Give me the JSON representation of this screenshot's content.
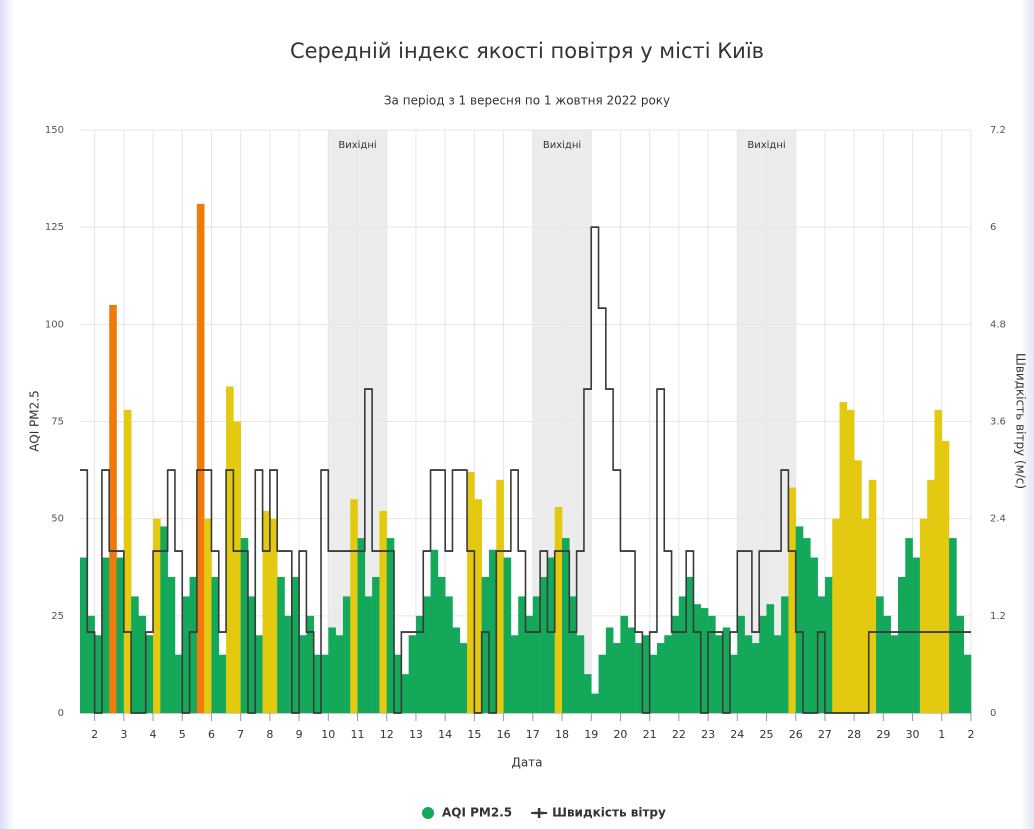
{
  "chart_data": {
    "type": "column-step",
    "title": "Середній індекс якості повітря у місті Київ",
    "subtitle": "За період з 1 вересня по 1 жовтня 2022 року",
    "x_label": "Дата",
    "y_label": "AQI PM2.5",
    "y2_label": "Швидкість вітру (м/с)",
    "xlim": [
      1.5,
      32
    ],
    "ylim": [
      0,
      150
    ],
    "y2lim": [
      0,
      7.2
    ],
    "xticks": [
      2,
      3,
      4,
      5,
      6,
      7,
      8,
      9,
      10,
      11,
      12,
      13,
      14,
      15,
      16,
      17,
      18,
      19,
      20,
      21,
      22,
      23,
      24,
      25,
      26,
      27,
      28,
      29,
      30,
      {
        "value": 31,
        "label": "1"
      },
      {
        "value": 32,
        "label": "2"
      }
    ],
    "yticks": [
      0,
      25,
      50,
      75,
      100,
      125,
      150
    ],
    "y2ticks": [
      0,
      1.2,
      2.4,
      3.6,
      4.8,
      6,
      7.2
    ],
    "grid": true,
    "legend": "bottom",
    "plot_bands": [
      {
        "from": 10,
        "to": 12,
        "label": "Вихідні"
      },
      {
        "from": 17,
        "to": 19,
        "label": "Вихідні"
      },
      {
        "from": 24,
        "to": 26,
        "label": "Вихідні"
      }
    ],
    "x": [
      1.5,
      1.75,
      2,
      2.25,
      2.5,
      2.75,
      3,
      3.25,
      3.5,
      3.75,
      4,
      4.25,
      4.5,
      4.75,
      5,
      5.25,
      5.5,
      5.75,
      6,
      6.25,
      6.5,
      6.75,
      7,
      7.25,
      7.5,
      7.75,
      8,
      8.25,
      8.5,
      8.75,
      9,
      9.25,
      9.5,
      9.75,
      10,
      10.25,
      10.5,
      10.75,
      11,
      11.25,
      11.5,
      11.75,
      12,
      12.25,
      12.5,
      12.75,
      13,
      13.25,
      13.5,
      13.75,
      14,
      14.25,
      14.5,
      14.75,
      15,
      15.25,
      15.5,
      15.75,
      16,
      16.25,
      16.5,
      16.75,
      17,
      17.25,
      17.5,
      17.75,
      18,
      18.25,
      18.5,
      18.75,
      19,
      19.25,
      19.5,
      19.75,
      20,
      20.25,
      20.5,
      20.75,
      21,
      21.25,
      21.5,
      21.75,
      22,
      22.25,
      22.5,
      22.75,
      23,
      23.25,
      23.5,
      23.75,
      24,
      24.25,
      24.5,
      24.75,
      25,
      25.25,
      25.5,
      25.75,
      26,
      26.25,
      26.5,
      26.75,
      27,
      27.25,
      27.5,
      27.75,
      28,
      28.25,
      28.5,
      28.75,
      29,
      29.25,
      29.5,
      29.75,
      30,
      30.25,
      30.5,
      30.75,
      31,
      31.25,
      31.5,
      31.75
    ],
    "series": [
      {
        "name": "AQI PM2.5",
        "color": "#14a85a",
        "zones": [
          {
            "value": 50,
            "color": "#14a85a"
          },
          {
            "value": 100,
            "color": "#e3c90f"
          },
          {
            "color": "#f07a0c"
          }
        ],
        "values": [
          40,
          25,
          20,
          40,
          105,
          40,
          78,
          30,
          25,
          20,
          50,
          48,
          35,
          15,
          30,
          35,
          131,
          50,
          35,
          15,
          84,
          75,
          45,
          30,
          20,
          52,
          50,
          35,
          25,
          35,
          20,
          25,
          15,
          15,
          22,
          20,
          30,
          55,
          45,
          30,
          35,
          52,
          45,
          15,
          10,
          20,
          25,
          30,
          42,
          35,
          30,
          22,
          18,
          62,
          55,
          35,
          42,
          60,
          40,
          20,
          30,
          25,
          30,
          35,
          40,
          53,
          45,
          30,
          20,
          10,
          5,
          15,
          22,
          18,
          25,
          22,
          18,
          20,
          15,
          18,
          20,
          25,
          30,
          35,
          28,
          27,
          25,
          20,
          22,
          15,
          25,
          20,
          18,
          25,
          28,
          20,
          30,
          58,
          48,
          45,
          40,
          30,
          35,
          50,
          80,
          78,
          65,
          50,
          60,
          30,
          25,
          20,
          35,
          45,
          40,
          50,
          60,
          78,
          70,
          45,
          25,
          15
        ]
      },
      {
        "name": "Швидкість вітру",
        "color": "#3a3a3a",
        "axis": "y2",
        "values": [
          3,
          1,
          0,
          3,
          2,
          2,
          1,
          0,
          0,
          1,
          2,
          2,
          3,
          2,
          0,
          1,
          3,
          3,
          2,
          1,
          3,
          2,
          2,
          0,
          3,
          2,
          3,
          2,
          2,
          0,
          2,
          1,
          0,
          3,
          2,
          2,
          2,
          2,
          2,
          4,
          2,
          2,
          2,
          0,
          1,
          1,
          1,
          2,
          3,
          3,
          2,
          3,
          3,
          2,
          0,
          1,
          0,
          2,
          2,
          3,
          2,
          1,
          1,
          2,
          1,
          2,
          2,
          1,
          2,
          4,
          6,
          5,
          4,
          3,
          2,
          2,
          1,
          0,
          1,
          4,
          2,
          1,
          1,
          2,
          1,
          0,
          1,
          1,
          0,
          1,
          2,
          2,
          1,
          2,
          2,
          2,
          3,
          2,
          1,
          0,
          0,
          1,
          0,
          0,
          0,
          0,
          0,
          0,
          1,
          1,
          1,
          1,
          1,
          1,
          1,
          1,
          1,
          1,
          1,
          1,
          1,
          1
        ]
      }
    ]
  }
}
